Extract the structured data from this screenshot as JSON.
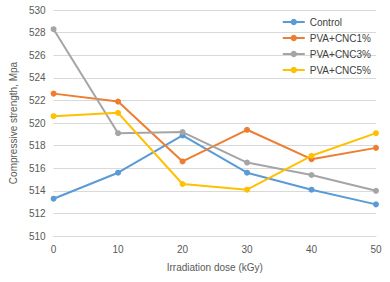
{
  "chart_data": {
    "type": "line",
    "x_label": "Irradiation dose (kGy)",
    "y_label": "Compressive strength, Mpa",
    "x": [
      0,
      10,
      20,
      30,
      40,
      50
    ],
    "series": [
      {
        "name": "Control",
        "color": "#5b9bd5",
        "values": [
          513.3,
          515.6,
          518.9,
          515.6,
          514.1,
          512.8
        ]
      },
      {
        "name": "PVA+CNC1%",
        "color": "#ed7d31",
        "values": [
          522.6,
          521.9,
          516.6,
          519.4,
          516.8,
          517.8
        ]
      },
      {
        "name": "PVA+CNC3%",
        "color": "#a5a5a5",
        "values": [
          528.3,
          519.1,
          519.2,
          516.5,
          515.4,
          514.0
        ]
      },
      {
        "name": "PVA+CNC5%",
        "color": "#ffc000",
        "values": [
          520.6,
          520.9,
          514.6,
          514.1,
          517.1,
          519.1
        ]
      }
    ],
    "xlim": [
      0,
      50
    ],
    "xticks": [
      0,
      10,
      20,
      30,
      40,
      50
    ],
    "ylim": [
      510,
      530
    ],
    "yticks": [
      510,
      512,
      514,
      516,
      518,
      520,
      522,
      524,
      526,
      528,
      530
    ],
    "grid": true,
    "legend": "top-right",
    "marker": "circle"
  }
}
